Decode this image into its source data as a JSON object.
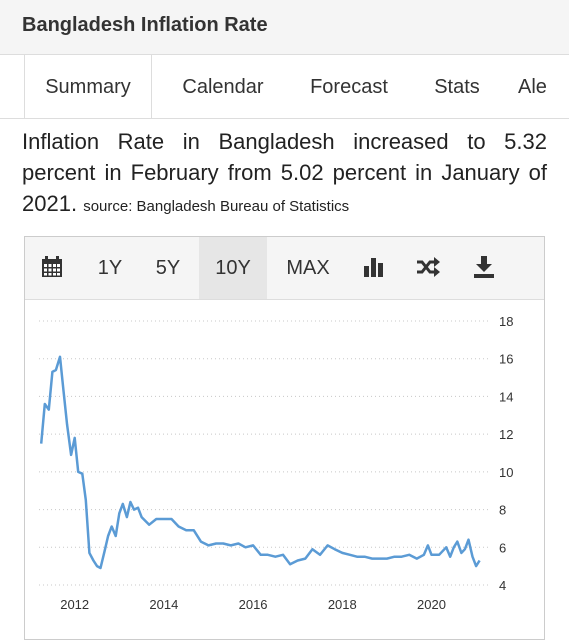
{
  "header": {
    "title": "Bangladesh Inflation Rate"
  },
  "tabs": [
    {
      "label": "Summary",
      "active": true
    },
    {
      "label": "Calendar",
      "active": false
    },
    {
      "label": "Forecast",
      "active": false
    },
    {
      "label": "Stats",
      "active": false
    },
    {
      "label": "Ale",
      "active": false
    }
  ],
  "summary": {
    "text": "Inflation Rate in Bangladesh increased to 5.32 percent in February from 5.02 percent in January of 2021.",
    "source": "source: Bangladesh Bureau of Statistics"
  },
  "toolbar": {
    "items": [
      {
        "icon": "calendar-icon"
      },
      {
        "label": "1Y"
      },
      {
        "label": "5Y"
      },
      {
        "label": "10Y",
        "active": true
      },
      {
        "label": "MAX"
      },
      {
        "icon": "bar-chart-icon"
      },
      {
        "icon": "shuffle-icon"
      },
      {
        "icon": "download-icon"
      }
    ]
  },
  "colors": {
    "line": "#5b9bd5",
    "grid": "#c8c8c8",
    "text": "#333333"
  },
  "chart_data": {
    "type": "line",
    "title": "",
    "xlabel": "",
    "ylabel": "",
    "xlim": [
      2011.2,
      2021.2
    ],
    "ylim": [
      4,
      18
    ],
    "x_ticks": [
      "2012",
      "2014",
      "2016",
      "2018",
      "2020"
    ],
    "y_ticks": [
      "4",
      "6",
      "8",
      "10",
      "12",
      "14",
      "16",
      "18"
    ],
    "grid": "horizontal-dotted",
    "y_axis_side": "right",
    "series": [
      {
        "name": "",
        "x": [
          2011.25,
          2011.33,
          2011.42,
          2011.5,
          2011.58,
          2011.67,
          2011.75,
          2011.83,
          2011.92,
          2012.0,
          2012.08,
          2012.17,
          2012.25,
          2012.33,
          2012.42,
          2012.5,
          2012.58,
          2012.67,
          2012.75,
          2012.83,
          2012.92,
          2013.0,
          2013.08,
          2013.17,
          2013.25,
          2013.33,
          2013.42,
          2013.5,
          2013.67,
          2013.83,
          2014.0,
          2014.17,
          2014.33,
          2014.5,
          2014.67,
          2014.83,
          2015.0,
          2015.17,
          2015.33,
          2015.5,
          2015.67,
          2015.83,
          2016.0,
          2016.17,
          2016.33,
          2016.5,
          2016.67,
          2016.83,
          2017.0,
          2017.17,
          2017.33,
          2017.5,
          2017.67,
          2017.83,
          2018.0,
          2018.17,
          2018.33,
          2018.5,
          2018.67,
          2018.83,
          2019.0,
          2019.17,
          2019.33,
          2019.5,
          2019.67,
          2019.83,
          2019.92,
          2020.0,
          2020.17,
          2020.33,
          2020.42,
          2020.5,
          2020.58,
          2020.67,
          2020.75,
          2020.83,
          2020.92,
          2021.0,
          2021.08
        ],
        "values": [
          11.5,
          13.6,
          13.3,
          15.3,
          15.4,
          16.1,
          14.3,
          12.5,
          10.9,
          11.8,
          10.0,
          9.9,
          8.5,
          5.7,
          5.3,
          5.0,
          4.9,
          5.8,
          6.6,
          7.1,
          6.6,
          7.8,
          8.3,
          7.6,
          8.4,
          8.0,
          8.1,
          7.6,
          7.2,
          7.5,
          7.5,
          7.5,
          7.1,
          6.9,
          6.9,
          6.3,
          6.1,
          6.2,
          6.2,
          6.1,
          6.2,
          6.0,
          6.1,
          5.6,
          5.6,
          5.5,
          5.6,
          5.1,
          5.3,
          5.4,
          5.9,
          5.6,
          6.1,
          5.9,
          5.7,
          5.6,
          5.5,
          5.5,
          5.4,
          5.4,
          5.4,
          5.5,
          5.5,
          5.6,
          5.4,
          5.6,
          6.1,
          5.6,
          5.6,
          6.0,
          5.5,
          6.0,
          6.3,
          5.7,
          5.9,
          6.4,
          5.5,
          5.0,
          5.3
        ]
      }
    ]
  }
}
